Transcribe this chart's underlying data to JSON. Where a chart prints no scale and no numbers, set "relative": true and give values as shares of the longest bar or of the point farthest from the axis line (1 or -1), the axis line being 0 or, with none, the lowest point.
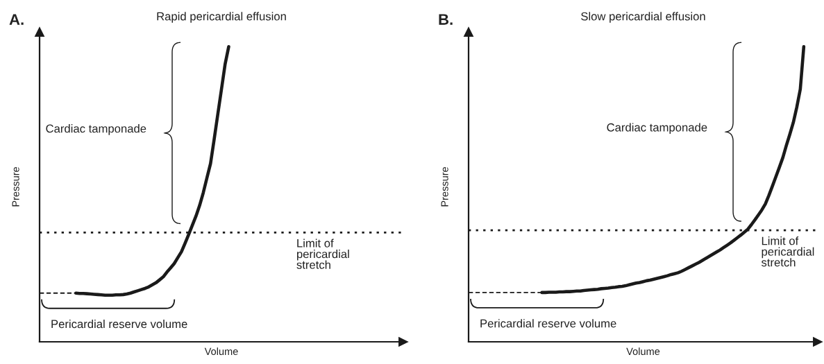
{
  "chart_data": [
    {
      "type": "line",
      "title": "Rapid pericardial effusion",
      "xlabel": "Volume",
      "ylabel": "Pressure",
      "relative": true,
      "categories": [
        null,
        null,
        null,
        null,
        null,
        null,
        null,
        null,
        null,
        null,
        null,
        null,
        null,
        null,
        null,
        null,
        null,
        null,
        null,
        null,
        null,
        null,
        null,
        null,
        null,
        null,
        null,
        null,
        null,
        null,
        null,
        null,
        null,
        null,
        null,
        null,
        null,
        null,
        null,
        null,
        null,
        null,
        null,
        null,
        null,
        null,
        null,
        null,
        null,
        null,
        null,
        null,
        null,
        null,
        null,
        null,
        null,
        null,
        null,
        null,
        null,
        null,
        null,
        null,
        null,
        null,
        null,
        null,
        null,
        null,
        null,
        null,
        null,
        null,
        null,
        null,
        null,
        null,
        null,
        null,
        null,
        null,
        null,
        null,
        null,
        null,
        null,
        null,
        null,
        null,
        null,
        null,
        null,
        null,
        null,
        null,
        null,
        null,
        null,
        null,
        null
      ],
      "annotations": [
        "A.",
        "Pericardial reserve volume",
        "Cardiac tamponade",
        {
          "text": "Limit of\npericardial\nstretch",
          "y": 0.37
        }
      ],
      "ref_lines": [
        {
          "axis": "y",
          "value": 0.37,
          "color": "#1a1a1a",
          "line_style": "dotted"
        }
      ],
      "series": [
        {
          "color": "#1a1a1a",
          "line_style": "solid",
          "values": [
            null,
            null,
            null,
            null,
            null,
            null,
            null,
            null,
            null,
            null,
            0.165,
            0.164,
            0.164,
            0.163,
            0.162,
            0.161,
            0.16,
            0.159,
            0.158,
            0.158,
            0.158,
            0.159,
            0.159,
            0.16,
            0.162,
            0.165,
            0.169,
            0.173,
            0.177,
            0.181,
            0.186,
            0.193,
            0.2,
            0.21,
            0.22,
            0.236,
            0.25,
            0.265,
            0.285,
            0.305,
            0.334,
            0.364,
            0.395,
            0.426,
            0.462,
            0.505,
            0.555,
            0.604,
            0.686,
            0.771,
            0.855,
            0.94,
            1.0,
            null,
            null,
            null,
            null,
            null,
            null,
            null,
            null,
            null,
            null,
            null,
            null,
            null,
            null,
            null,
            null,
            null,
            null,
            null,
            null,
            null,
            null,
            null,
            null,
            null,
            null,
            null,
            null,
            null,
            null,
            null,
            null,
            null,
            null,
            null,
            null,
            null,
            null,
            null,
            null,
            null,
            null,
            null,
            null,
            null,
            null,
            null,
            null
          ]
        },
        {
          "color": "#1a1a1a",
          "line_style": "dashed",
          "values": [
            0.165,
            0.165,
            0.165,
            0.165,
            0.165,
            0.165,
            0.165,
            0.165,
            0.165,
            0.165,
            0.165,
            null,
            null,
            null,
            null,
            null,
            null,
            null,
            null,
            null,
            null,
            null,
            null,
            null,
            null,
            null,
            null,
            null,
            null,
            null,
            null,
            null,
            null,
            null,
            null,
            null,
            null,
            null,
            null,
            null,
            null,
            null,
            null,
            null,
            null,
            null,
            null,
            null,
            null,
            null,
            null,
            null,
            null,
            null,
            null,
            null,
            null,
            null,
            null,
            null,
            null,
            null,
            null,
            null,
            null,
            null,
            null,
            null,
            null,
            null,
            null,
            null,
            null,
            null,
            null,
            null,
            null,
            null,
            null,
            null,
            null,
            null,
            null,
            null,
            null,
            null,
            null,
            null,
            null,
            null,
            null,
            null,
            null,
            null,
            null,
            null,
            null,
            null,
            null,
            null,
            null
          ]
        }
      ]
    },
    {
      "type": "line",
      "title": "Slow pericardial effusion",
      "xlabel": "Volume",
      "ylabel": "Pressure",
      "relative": true,
      "categories": [
        null,
        null,
        null,
        null,
        null,
        null,
        null,
        null,
        null,
        null,
        null,
        null,
        null,
        null,
        null,
        null,
        null,
        null,
        null,
        null,
        null,
        null,
        null,
        null,
        null,
        null,
        null,
        null,
        null,
        null,
        null,
        null,
        null,
        null,
        null,
        null,
        null,
        null,
        null,
        null,
        null,
        null,
        null,
        null,
        null,
        null,
        null,
        null,
        null,
        null,
        null,
        null,
        null,
        null,
        null,
        null,
        null,
        null,
        null,
        null,
        null,
        null,
        null,
        null,
        null,
        null,
        null,
        null,
        null,
        null,
        null,
        null,
        null,
        null,
        null,
        null,
        null,
        null,
        null,
        null,
        null,
        null,
        null,
        null,
        null,
        null,
        null,
        null,
        null,
        null,
        null,
        null,
        null,
        null,
        null,
        null,
        null,
        null,
        null,
        null,
        null
      ],
      "annotations": [
        "B.",
        "Pericardial reserve volume",
        "Cardiac tamponade",
        {
          "text": "Limit of\npericardial\nstretch",
          "y": 0.378
        }
      ],
      "ref_lines": [
        {
          "axis": "y",
          "value": 0.378,
          "color": "#1a1a1a",
          "line_style": "dotted"
        }
      ],
      "series": [
        {
          "color": "#1a1a1a",
          "line_style": "solid",
          "values": [
            null,
            null,
            null,
            null,
            null,
            null,
            null,
            null,
            null,
            null,
            null,
            null,
            null,
            null,
            null,
            null,
            null,
            null,
            null,
            null,
            null,
            0.167,
            0.167,
            0.168,
            0.168,
            0.168,
            0.169,
            0.169,
            0.17,
            0.17,
            0.171,
            0.172,
            0.172,
            0.174,
            0.175,
            0.176,
            0.177,
            0.178,
            0.18,
            0.181,
            0.182,
            0.184,
            0.185,
            0.187,
            0.188,
            0.19,
            0.193,
            0.196,
            0.199,
            0.201,
            0.204,
            0.207,
            0.209,
            0.212,
            0.215,
            0.218,
            0.221,
            0.224,
            0.228,
            0.231,
            0.234,
            0.239,
            0.245,
            0.251,
            0.257,
            0.263,
            0.269,
            0.276,
            0.283,
            0.29,
            0.297,
            0.304,
            0.311,
            0.319,
            0.327,
            0.335,
            0.344,
            0.353,
            0.362,
            0.372,
            0.382,
            0.397,
            0.413,
            0.43,
            0.447,
            0.467,
            0.496,
            0.527,
            0.559,
            0.591,
            0.624,
            0.665,
            0.703,
            0.743,
            0.795,
            0.856,
            1.0,
            null,
            null,
            null,
            null
          ]
        },
        {
          "color": "#1a1a1a",
          "line_style": "dashed",
          "values": [
            0.167,
            0.167,
            0.167,
            0.167,
            0.167,
            0.167,
            0.167,
            0.167,
            0.167,
            0.167,
            0.167,
            0.167,
            0.167,
            0.167,
            0.167,
            0.167,
            0.167,
            0.167,
            0.167,
            0.167,
            0.167,
            0.167,
            null,
            null,
            null,
            null,
            null,
            null,
            null,
            null,
            null,
            null,
            null,
            null,
            null,
            null,
            null,
            null,
            null,
            null,
            null,
            null,
            null,
            null,
            null,
            null,
            null,
            null,
            null,
            null,
            null,
            null,
            null,
            null,
            null,
            null,
            null,
            null,
            null,
            null,
            null,
            null,
            null,
            null,
            null,
            null,
            null,
            null,
            null,
            null,
            null,
            null,
            null,
            null,
            null,
            null,
            null,
            null,
            null,
            null,
            null,
            null,
            null,
            null,
            null,
            null,
            null,
            null,
            null,
            null,
            null,
            null,
            null,
            null,
            null,
            null,
            null,
            null,
            null,
            null,
            null
          ]
        }
      ]
    }
  ]
}
